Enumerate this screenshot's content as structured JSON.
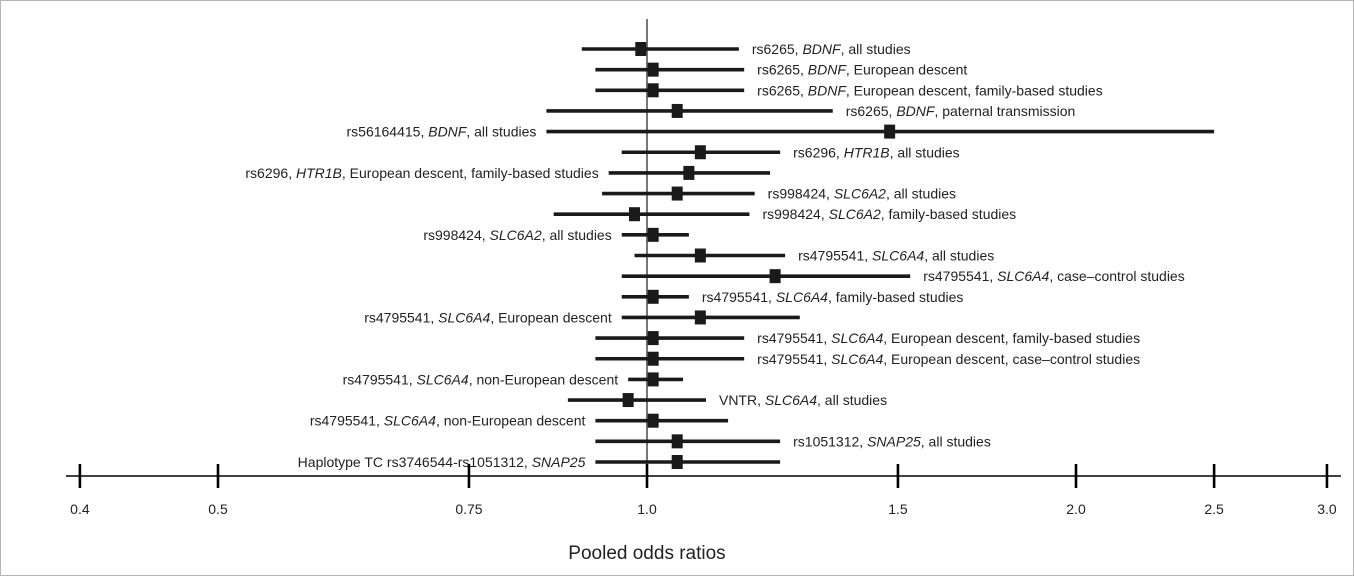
{
  "chart_data": {
    "type": "forest",
    "xlabel": "Pooled odds ratios",
    "x_scale": "log",
    "xlim": [
      0.4,
      3.0
    ],
    "ticks": [
      0.4,
      0.5,
      0.75,
      1.0,
      1.5,
      2.0,
      2.5,
      3.0
    ],
    "tick_labels": [
      "0.4",
      "0.5",
      "0.75",
      "1.0",
      "1.5",
      "2.0",
      "2.5",
      "3.0"
    ],
    "reference_line": 1.0,
    "colors": {
      "marks": "#1a1a1a",
      "axis": "#000000",
      "text": "#222222",
      "border": "#b5b5b5"
    },
    "rows": [
      {
        "label_parts": [
          {
            "t": "rs6265, "
          },
          {
            "t": "BDNF",
            "i": true
          },
          {
            "t": ", all studies"
          }
        ],
        "or": 0.99,
        "lo": 0.9,
        "hi": 1.16,
        "label_side": "right"
      },
      {
        "label_parts": [
          {
            "t": "rs6265, "
          },
          {
            "t": "BDNF",
            "i": true
          },
          {
            "t": ", European descent"
          }
        ],
        "or": 1.01,
        "lo": 0.92,
        "hi": 1.17,
        "label_side": "right"
      },
      {
        "label_parts": [
          {
            "t": "rs6265, "
          },
          {
            "t": "BDNF",
            "i": true
          },
          {
            "t": ", European descent, family-based studies"
          }
        ],
        "or": 1.01,
        "lo": 0.92,
        "hi": 1.17,
        "label_side": "right"
      },
      {
        "label_parts": [
          {
            "t": "rs6265, "
          },
          {
            "t": "BDNF",
            "i": true
          },
          {
            "t": ", paternal transmission"
          }
        ],
        "or": 1.05,
        "lo": 0.85,
        "hi": 1.35,
        "label_side": "right"
      },
      {
        "label_parts": [
          {
            "t": "rs56164415, "
          },
          {
            "t": "BDNF",
            "i": true
          },
          {
            "t": ", all studies"
          }
        ],
        "or": 1.48,
        "lo": 0.85,
        "hi": 2.5,
        "label_side": "left"
      },
      {
        "label_parts": [
          {
            "t": "rs6296, "
          },
          {
            "t": "HTR1B",
            "i": true
          },
          {
            "t": ", all studies"
          }
        ],
        "or": 1.09,
        "lo": 0.96,
        "hi": 1.24,
        "label_side": "right"
      },
      {
        "label_parts": [
          {
            "t": "rs6296, "
          },
          {
            "t": "HTR1B",
            "i": true
          },
          {
            "t": ", European descent, family-based studies"
          }
        ],
        "or": 1.07,
        "lo": 0.94,
        "hi": 1.22,
        "label_side": "left"
      },
      {
        "label_parts": [
          {
            "t": "rs998424, "
          },
          {
            "t": "SLC6A2",
            "i": true
          },
          {
            "t": ", all studies"
          }
        ],
        "or": 1.05,
        "lo": 0.93,
        "hi": 1.19,
        "label_side": "right"
      },
      {
        "label_parts": [
          {
            "t": "rs998424, "
          },
          {
            "t": "SLC6A2",
            "i": true
          },
          {
            "t": ", family-based studies"
          }
        ],
        "or": 0.98,
        "lo": 0.86,
        "hi": 1.18,
        "label_side": "right"
      },
      {
        "label_parts": [
          {
            "t": "rs998424, "
          },
          {
            "t": "SLC6A2",
            "i": true
          },
          {
            "t": ", all studies"
          }
        ],
        "or": 1.01,
        "lo": 0.96,
        "hi": 1.07,
        "label_side": "left"
      },
      {
        "label_parts": [
          {
            "t": "rs4795541, "
          },
          {
            "t": "SLC6A4",
            "i": true
          },
          {
            "t": ", all studies"
          }
        ],
        "or": 1.09,
        "lo": 0.98,
        "hi": 1.25,
        "label_side": "right"
      },
      {
        "label_parts": [
          {
            "t": "rs4795541, "
          },
          {
            "t": "SLC6A4",
            "i": true
          },
          {
            "t": ", case–control studies"
          }
        ],
        "or": 1.23,
        "lo": 0.96,
        "hi": 1.53,
        "label_side": "right"
      },
      {
        "label_parts": [
          {
            "t": "rs4795541, "
          },
          {
            "t": "SLC6A4",
            "i": true
          },
          {
            "t": ", family-based studies"
          }
        ],
        "or": 1.01,
        "lo": 0.96,
        "hi": 1.07,
        "label_side": "right"
      },
      {
        "label_parts": [
          {
            "t": "rs4795541, "
          },
          {
            "t": "SLC6A4",
            "i": true
          },
          {
            "t": ", European descent"
          }
        ],
        "or": 1.09,
        "lo": 0.96,
        "hi": 1.28,
        "label_side": "left"
      },
      {
        "label_parts": [
          {
            "t": "rs4795541, "
          },
          {
            "t": "SLC6A4",
            "i": true
          },
          {
            "t": ", European descent, family-based studies"
          }
        ],
        "or": 1.01,
        "lo": 0.92,
        "hi": 1.17,
        "label_side": "right"
      },
      {
        "label_parts": [
          {
            "t": "rs4795541, "
          },
          {
            "t": "SLC6A4",
            "i": true
          },
          {
            "t": ", European descent, case–control studies"
          }
        ],
        "or": 1.01,
        "lo": 0.92,
        "hi": 1.17,
        "label_side": "right"
      },
      {
        "label_parts": [
          {
            "t": "rs4795541, "
          },
          {
            "t": "SLC6A4",
            "i": true
          },
          {
            "t": ", non-European descent"
          }
        ],
        "or": 1.01,
        "lo": 0.97,
        "hi": 1.06,
        "label_side": "left"
      },
      {
        "label_parts": [
          {
            "t": "VNTR, "
          },
          {
            "t": "SLC6A4",
            "i": true
          },
          {
            "t": ", all studies"
          }
        ],
        "or": 0.97,
        "lo": 0.88,
        "hi": 1.1,
        "label_side": "right"
      },
      {
        "label_parts": [
          {
            "t": "rs4795541, "
          },
          {
            "t": "SLC6A4",
            "i": true
          },
          {
            "t": ", non-European descent"
          }
        ],
        "or": 1.01,
        "lo": 0.92,
        "hi": 1.14,
        "label_side": "left"
      },
      {
        "label_parts": [
          {
            "t": "rs1051312, "
          },
          {
            "t": "SNAP25",
            "i": true
          },
          {
            "t": ", all studies"
          }
        ],
        "or": 1.05,
        "lo": 0.92,
        "hi": 1.24,
        "label_side": "right"
      },
      {
        "label_parts": [
          {
            "t": "Haplotype TC rs3746544-rs1051312, "
          },
          {
            "t": "SNAP25",
            "i": true
          }
        ],
        "or": 1.05,
        "lo": 0.92,
        "hi": 1.24,
        "label_side": "left"
      }
    ]
  }
}
